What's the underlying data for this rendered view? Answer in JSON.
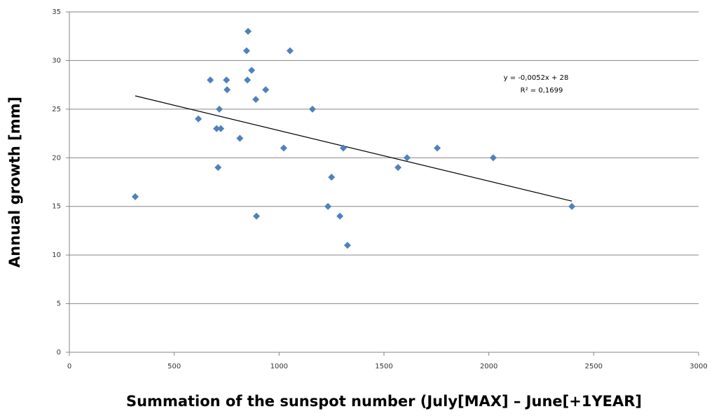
{
  "chart_data": {
    "type": "scatter",
    "x_label": "Summation of the sunspot number (July[MAX] – June[+1YEAR]",
    "y_label": "Annual growth [mm]",
    "x": [
      314,
      615,
      672,
      702,
      709,
      715,
      722,
      749,
      752,
      813,
      845,
      852,
      849,
      869,
      889,
      892,
      936,
      1022,
      1052,
      1159,
      1233,
      1250,
      1290,
      1306,
      1326,
      1567,
      1610,
      1754,
      2021,
      2396
    ],
    "values": [
      16,
      24,
      28,
      23,
      19,
      25,
      23,
      28,
      27,
      22,
      31,
      33,
      28,
      29,
      26,
      14,
      27,
      21,
      31,
      25,
      15,
      18,
      14,
      21,
      11,
      19,
      20,
      21,
      20,
      15
    ],
    "color": "#4f81bd",
    "xlim": [
      0,
      3000
    ],
    "xticks": [
      0,
      500,
      1000,
      1500,
      2000,
      2500,
      3000
    ],
    "ylim": [
      0,
      35
    ],
    "yticks": [
      0,
      5,
      10,
      15,
      20,
      25,
      30,
      35
    ],
    "grid": true,
    "trendline": {
      "slope": -0.0052,
      "intercept": 28,
      "equation_label": "y = -0,0052x + 28",
      "r2_label": "R² = 0,1699"
    }
  }
}
